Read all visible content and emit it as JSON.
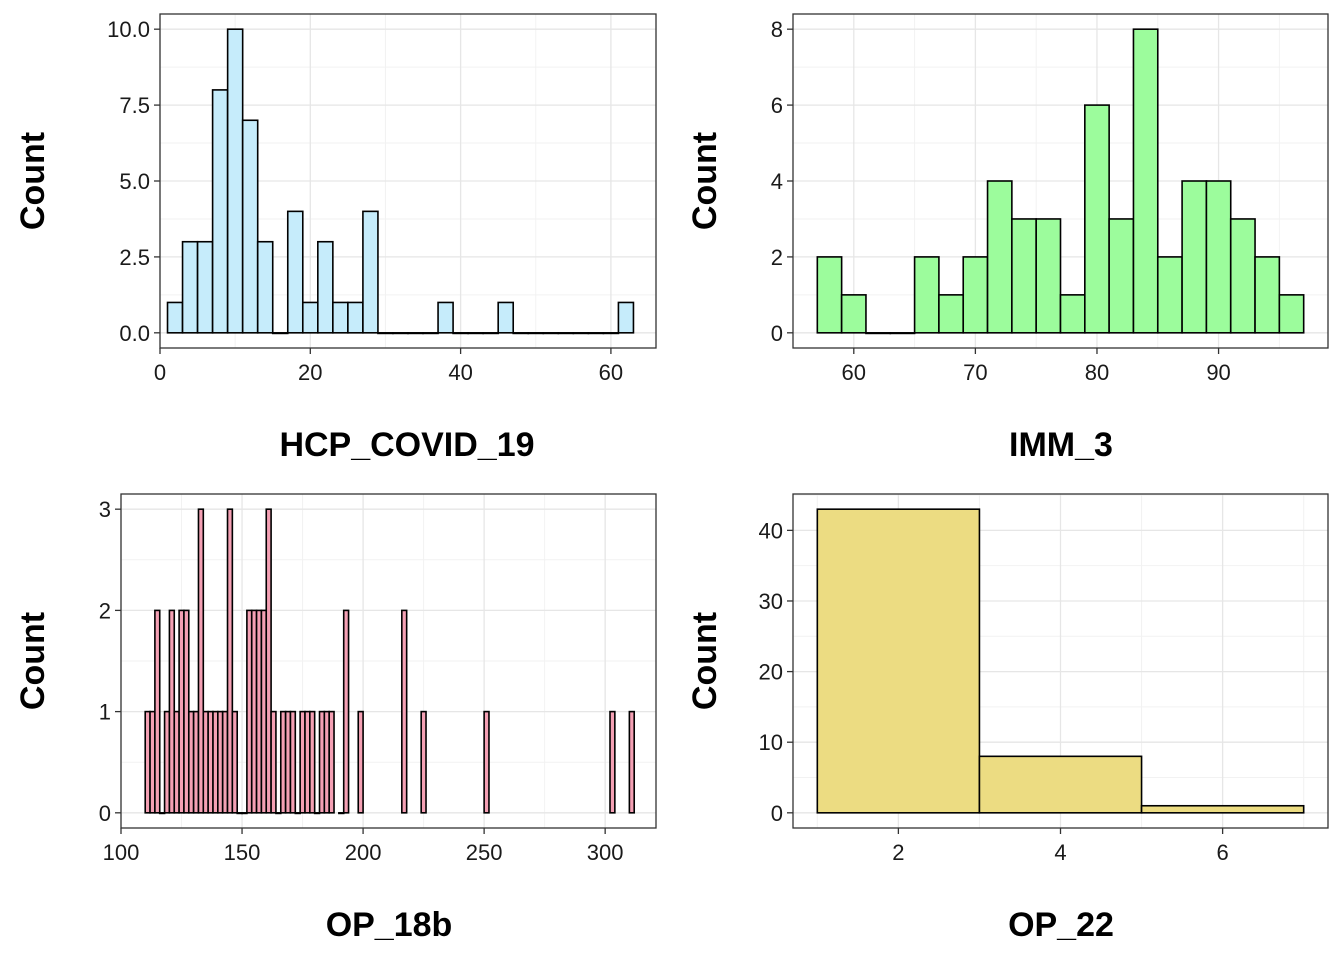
{
  "chart_data": [
    {
      "type": "bar",
      "subtype": "histogram",
      "xlabel": "HCP_COVID_19",
      "ylabel": "Count",
      "fill": "#c6ecfb",
      "binwidth": 2,
      "xlim": [
        0,
        66
      ],
      "ylim": [
        -0.5,
        10.5
      ],
      "xticks": [
        0,
        20,
        40,
        60
      ],
      "yticks": [
        0,
        2.5,
        5,
        7.5,
        10
      ],
      "ytick_labels": [
        "0.0",
        "2.5",
        "5.0",
        "7.5",
        "10.0"
      ],
      "bins": [
        [
          1,
          3,
          1
        ],
        [
          3,
          5,
          3
        ],
        [
          5,
          7,
          3
        ],
        [
          7,
          9,
          8
        ],
        [
          9,
          11,
          10
        ],
        [
          11,
          13,
          7
        ],
        [
          13,
          15,
          3
        ],
        [
          15,
          17,
          0
        ],
        [
          17,
          19,
          4
        ],
        [
          19,
          21,
          1
        ],
        [
          21,
          23,
          3
        ],
        [
          23,
          25,
          1
        ],
        [
          25,
          27,
          1
        ],
        [
          27,
          29,
          4
        ],
        [
          29,
          31,
          0
        ],
        [
          31,
          33,
          0
        ],
        [
          33,
          35,
          0
        ],
        [
          35,
          37,
          0
        ],
        [
          37,
          39,
          1
        ],
        [
          39,
          41,
          0
        ],
        [
          41,
          43,
          0
        ],
        [
          43,
          45,
          0
        ],
        [
          45,
          47,
          1
        ],
        [
          47,
          49,
          0
        ],
        [
          49,
          51,
          0
        ],
        [
          51,
          53,
          0
        ],
        [
          53,
          55,
          0
        ],
        [
          55,
          57,
          0
        ],
        [
          57,
          59,
          0
        ],
        [
          59,
          61,
          0
        ],
        [
          61,
          63,
          1
        ]
      ]
    },
    {
      "type": "bar",
      "subtype": "histogram",
      "xlabel": "IMM_3",
      "ylabel": "Count",
      "fill": "#9cfc9c",
      "binwidth": 2,
      "xlim": [
        55,
        99
      ],
      "ylim": [
        -0.4,
        8.4
      ],
      "xticks": [
        60,
        70,
        80,
        90
      ],
      "yticks": [
        0,
        2,
        4,
        6,
        8
      ],
      "ytick_labels": [
        "0",
        "2",
        "4",
        "6",
        "8"
      ],
      "bins": [
        [
          57,
          59,
          2
        ],
        [
          59,
          61,
          1
        ],
        [
          61,
          63,
          0
        ],
        [
          63,
          65,
          0
        ],
        [
          65,
          67,
          2
        ],
        [
          67,
          69,
          1
        ],
        [
          69,
          71,
          2
        ],
        [
          71,
          73,
          4
        ],
        [
          73,
          75,
          3
        ],
        [
          75,
          77,
          3
        ],
        [
          77,
          79,
          1
        ],
        [
          79,
          81,
          6
        ],
        [
          81,
          83,
          3
        ],
        [
          83,
          85,
          8
        ],
        [
          85,
          87,
          2
        ],
        [
          87,
          89,
          4
        ],
        [
          89,
          91,
          4
        ],
        [
          91,
          93,
          3
        ],
        [
          93,
          95,
          2
        ],
        [
          95,
          97,
          1
        ]
      ]
    },
    {
      "type": "bar",
      "subtype": "histogram",
      "xlabel": "OP_18b",
      "ylabel": "Count",
      "fill": "#f4a0b4",
      "binwidth": 2,
      "xlim": [
        100,
        321
      ],
      "ylim": [
        -0.15,
        3.15
      ],
      "xticks": [
        100,
        150,
        200,
        250,
        300
      ],
      "yticks": [
        0,
        1,
        2,
        3
      ],
      "ytick_labels": [
        "0",
        "1",
        "2",
        "3"
      ],
      "bins": [
        [
          110,
          112,
          1
        ],
        [
          112,
          114,
          1
        ],
        [
          114,
          116,
          2
        ],
        [
          116,
          118,
          0
        ],
        [
          118,
          120,
          1
        ],
        [
          120,
          122,
          2
        ],
        [
          122,
          124,
          1
        ],
        [
          124,
          126,
          2
        ],
        [
          126,
          128,
          2
        ],
        [
          128,
          130,
          1
        ],
        [
          130,
          132,
          1
        ],
        [
          132,
          134,
          3
        ],
        [
          134,
          136,
          1
        ],
        [
          136,
          138,
          1
        ],
        [
          138,
          140,
          1
        ],
        [
          140,
          142,
          1
        ],
        [
          142,
          144,
          1
        ],
        [
          144,
          146,
          3
        ],
        [
          146,
          148,
          1
        ],
        [
          148,
          150,
          0
        ],
        [
          150,
          152,
          0
        ],
        [
          152,
          154,
          2
        ],
        [
          154,
          156,
          2
        ],
        [
          156,
          158,
          2
        ],
        [
          158,
          160,
          2
        ],
        [
          160,
          162,
          3
        ],
        [
          162,
          164,
          1
        ],
        [
          164,
          166,
          0
        ],
        [
          166,
          168,
          1
        ],
        [
          168,
          170,
          1
        ],
        [
          170,
          172,
          1
        ],
        [
          172,
          174,
          0
        ],
        [
          174,
          176,
          1
        ],
        [
          176,
          178,
          1
        ],
        [
          178,
          180,
          1
        ],
        [
          180,
          182,
          0
        ],
        [
          182,
          184,
          1
        ],
        [
          184,
          186,
          1
        ],
        [
          186,
          188,
          1
        ],
        [
          190,
          192,
          0
        ],
        [
          192,
          194,
          2
        ],
        [
          198,
          200,
          1
        ],
        [
          216,
          218,
          2
        ],
        [
          224,
          226,
          1
        ],
        [
          250,
          252,
          1
        ],
        [
          302,
          304,
          1
        ],
        [
          310,
          312,
          1
        ]
      ]
    },
    {
      "type": "bar",
      "subtype": "histogram",
      "xlabel": "OP_22",
      "ylabel": "Count",
      "fill": "#ecdc82",
      "binwidth": 2,
      "xlim": [
        0.7,
        7.3
      ],
      "ylim": [
        -2.15,
        45.15
      ],
      "xticks": [
        2,
        4,
        6
      ],
      "yticks": [
        0,
        10,
        20,
        30,
        40
      ],
      "ytick_labels": [
        "0",
        "10",
        "20",
        "30",
        "40"
      ],
      "bins": [
        [
          1,
          3,
          43
        ],
        [
          3,
          5,
          8
        ],
        [
          5,
          7,
          1
        ]
      ]
    }
  ]
}
